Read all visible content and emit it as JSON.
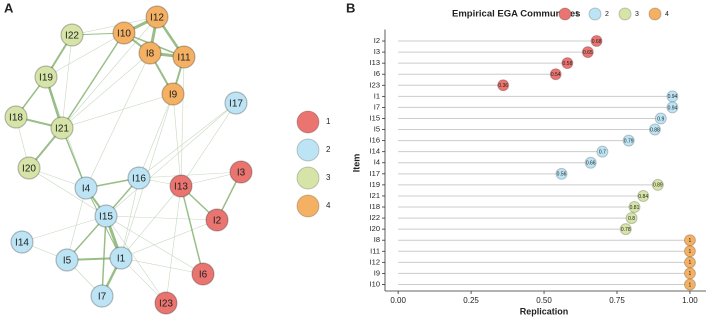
{
  "chart_data": [
    {
      "type": "network",
      "panel": "A",
      "nodes": [
        {
          "label": "I12",
          "group": "4"
        },
        {
          "label": "I10",
          "group": "4"
        },
        {
          "label": "I22",
          "group": "3"
        },
        {
          "label": "I8",
          "group": "4"
        },
        {
          "label": "I11",
          "group": "4"
        },
        {
          "label": "I19",
          "group": "3"
        },
        {
          "label": "I9",
          "group": "4"
        },
        {
          "label": "I17",
          "group": "2"
        },
        {
          "label": "I18",
          "group": "3"
        },
        {
          "label": "I21",
          "group": "3"
        },
        {
          "label": "I20",
          "group": "3"
        },
        {
          "label": "I16",
          "group": "2"
        },
        {
          "label": "I13",
          "group": "1"
        },
        {
          "label": "I3",
          "group": "1"
        },
        {
          "label": "I4",
          "group": "2"
        },
        {
          "label": "I15",
          "group": "2"
        },
        {
          "label": "I2",
          "group": "1"
        },
        {
          "label": "I14",
          "group": "2"
        },
        {
          "label": "I5",
          "group": "2"
        },
        {
          "label": "I1",
          "group": "2"
        },
        {
          "label": "I6",
          "group": "1"
        },
        {
          "label": "I7",
          "group": "2"
        },
        {
          "label": "I23",
          "group": "1"
        }
      ],
      "groups": [
        {
          "name": "1",
          "color": "#ea7470"
        },
        {
          "name": "2",
          "color": "#bce4f4"
        },
        {
          "name": "3",
          "color": "#d6e4a8"
        },
        {
          "name": "4",
          "color": "#f4b063"
        }
      ]
    },
    {
      "type": "dot",
      "panel": "B",
      "title": "Empirical EGA Communities",
      "categories": [
        "I2",
        "I3",
        "I13",
        "I6",
        "I23",
        "I1",
        "I7",
        "I15",
        "I5",
        "I16",
        "I14",
        "I4",
        "I17",
        "I19",
        "I21",
        "I18",
        "I22",
        "I20",
        "I8",
        "I11",
        "I12",
        "I9",
        "I10"
      ],
      "series": [
        {
          "name": "1",
          "color": "#ea7470",
          "values": [
            0.68,
            0.65,
            0.58,
            0.54,
            0.36,
            null,
            null,
            null,
            null,
            null,
            null,
            null,
            null,
            null,
            null,
            null,
            null,
            null,
            null,
            null,
            null,
            null,
            null
          ]
        },
        {
          "name": "2",
          "color": "#bce4f4",
          "values": [
            null,
            null,
            null,
            null,
            null,
            0.94,
            0.94,
            0.9,
            0.88,
            0.79,
            0.7,
            0.66,
            0.56,
            null,
            null,
            null,
            null,
            null,
            null,
            null,
            null,
            null,
            null
          ]
        },
        {
          "name": "3",
          "color": "#d6e4a8",
          "values": [
            null,
            null,
            null,
            null,
            null,
            null,
            null,
            null,
            null,
            null,
            null,
            null,
            null,
            0.89,
            0.84,
            0.81,
            0.8,
            0.78,
            null,
            null,
            null,
            null,
            null
          ]
        },
        {
          "name": "4",
          "color": "#f4b063",
          "values": [
            null,
            null,
            null,
            null,
            null,
            null,
            null,
            null,
            null,
            null,
            null,
            null,
            null,
            null,
            null,
            null,
            null,
            null,
            1,
            1,
            1,
            1,
            1
          ]
        }
      ],
      "xlim": [
        -0.045,
        1.055
      ],
      "xticks": [
        {
          "value": 0,
          "label": "0.00"
        },
        {
          "value": 0.25,
          "label": "0.25"
        },
        {
          "value": 0.5,
          "label": "0.50"
        },
        {
          "value": 0.75,
          "label": "0.75"
        },
        {
          "value": 1,
          "label": "1.00"
        }
      ],
      "xlabel": "Replication",
      "ylabel": "Item"
    }
  ]
}
